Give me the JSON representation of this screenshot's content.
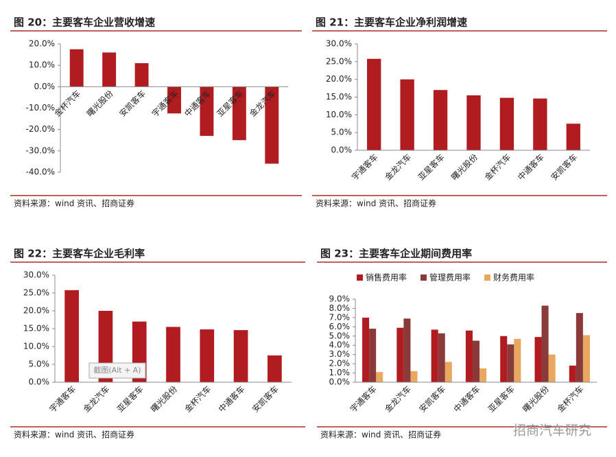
{
  "chart_data": [
    {
      "type": "bar",
      "title": "图 20：主要客车企业营收增速",
      "source": "资料来源：wind 资讯、招商证券",
      "color": "#b01c20",
      "categories": [
        "金杯汽车",
        "曙光股份",
        "安凯客车",
        "宇通客车",
        "中通客车",
        "亚星客车",
        "金龙汽车"
      ],
      "values": [
        17.5,
        16,
        11,
        -12.5,
        -23,
        -25,
        -36
      ],
      "ylim": [
        -40,
        20
      ],
      "yticks": [
        {
          "value": -40,
          "label": "-40.0%"
        },
        {
          "value": -30,
          "label": "-30.0%"
        },
        {
          "value": -20,
          "label": "-20.0%"
        },
        {
          "value": -10,
          "label": "-10.0%"
        },
        {
          "value": 0,
          "label": "0.0%"
        },
        {
          "value": 10,
          "label": "10.0%"
        },
        {
          "value": 20,
          "label": "20.0%"
        }
      ]
    },
    {
      "type": "bar",
      "title": "图 21：主要客车企业净利润增速",
      "source": "资料来源：wind 资讯、招商证券",
      "color": "#b01c20",
      "categories": [
        "宇通客车",
        "金龙汽车",
        "亚星客车",
        "曙光股份",
        "金杯汽车",
        "中通客车",
        "安凯客车"
      ],
      "values": [
        25.8,
        20,
        17,
        15.5,
        14.8,
        14.6,
        7.5
      ],
      "ylim": [
        0,
        30
      ],
      "yticks": [
        {
          "value": 0,
          "label": "0.0%"
        },
        {
          "value": 5,
          "label": "5.0%"
        },
        {
          "value": 10,
          "label": "10.0%"
        },
        {
          "value": 15,
          "label": "15.0%"
        },
        {
          "value": 20,
          "label": "20.0%"
        },
        {
          "value": 25,
          "label": "25.0%"
        },
        {
          "value": 30,
          "label": "30.0%"
        }
      ]
    },
    {
      "type": "bar",
      "title": "图 22：主要客车企业毛利率",
      "source": "资料来源：wind 资讯、招商证券",
      "color": "#b01c20",
      "categories": [
        "宇通客车",
        "金龙汽车",
        "亚星客车",
        "曙光股份",
        "金杯汽车",
        "中通客车",
        "安凯客车"
      ],
      "values": [
        25.8,
        20,
        17,
        15.5,
        14.8,
        14.6,
        7.5
      ],
      "ylim": [
        0,
        30
      ],
      "yticks": [
        {
          "value": 0,
          "label": "0.0%"
        },
        {
          "value": 5,
          "label": "5.0%"
        },
        {
          "value": 10,
          "label": "10.0%"
        },
        {
          "value": 15,
          "label": "15.0%"
        },
        {
          "value": 20,
          "label": "20.0%"
        },
        {
          "value": 25,
          "label": "25.0%"
        },
        {
          "value": 30,
          "label": "30.0%"
        }
      ]
    },
    {
      "type": "grouped_bar",
      "title": "图 23：主要客车企业期间费用率",
      "source": "资料来源：wind 资讯、招商证券",
      "categories": [
        "宇通客车",
        "金龙汽车",
        "安凯客车",
        "中通客车",
        "亚星客车",
        "曙光股份",
        "金杯汽车"
      ],
      "series": [
        {
          "name": "销售费用率",
          "color": "#b01c20",
          "values": [
            7.0,
            5.9,
            5.7,
            5.6,
            5.0,
            4.9,
            1.8
          ]
        },
        {
          "name": "管理费用率",
          "color": "#8b3a3a",
          "values": [
            5.8,
            6.9,
            5.3,
            4.5,
            4.1,
            8.3,
            7.5
          ]
        },
        {
          "name": "财务费用率",
          "color": "#e8a860",
          "values": [
            1.1,
            1.2,
            2.2,
            1.5,
            4.7,
            3.0,
            5.1
          ]
        }
      ],
      "ylim": [
        0,
        9
      ],
      "yticks": [
        {
          "value": 0,
          "label": "0.0%"
        },
        {
          "value": 1,
          "label": "1.0%"
        },
        {
          "value": 2,
          "label": "2.0%"
        },
        {
          "value": 3,
          "label": "3.0%"
        },
        {
          "value": 4,
          "label": "4.0%"
        },
        {
          "value": 5,
          "label": "5.0%"
        },
        {
          "value": 6,
          "label": "6.0%"
        },
        {
          "value": 7,
          "label": "7.0%"
        },
        {
          "value": 8,
          "label": "8.0%"
        },
        {
          "value": 9,
          "label": "9.0%"
        }
      ]
    }
  ],
  "overlay": {
    "tooltip": "截图(Alt + A)",
    "watermark": "招商汽车研究"
  }
}
